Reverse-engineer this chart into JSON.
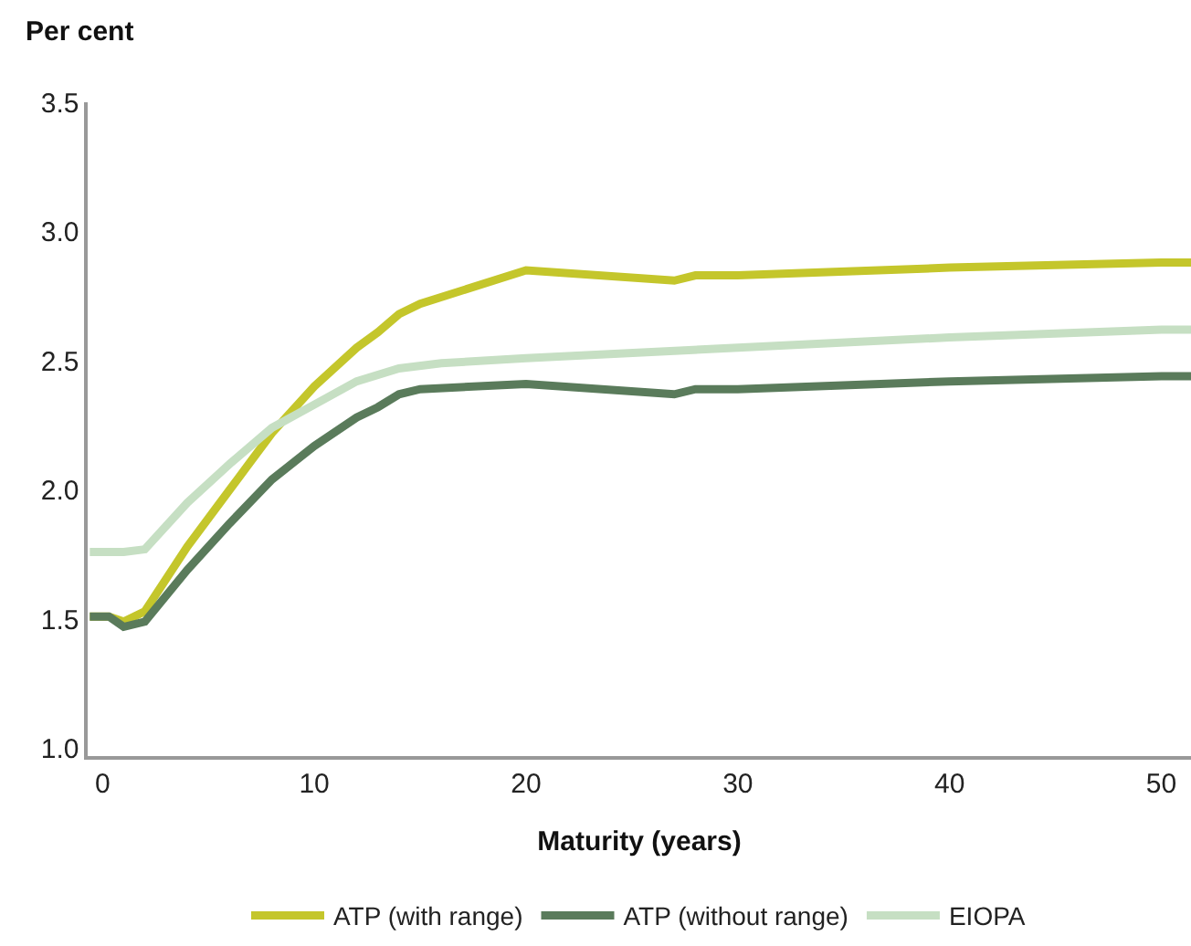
{
  "chart_data": {
    "type": "line",
    "ylabel": "Per cent",
    "xlabel": "Maturity (years)",
    "xlim": [
      -0.7,
      51.4
    ],
    "xticks": [
      0,
      10,
      20,
      30,
      40,
      50
    ],
    "ylim": [
      0.97,
      3.5
    ],
    "yticks": [
      {
        "value": 1.0,
        "label": "1.0"
      },
      1.5,
      {
        "value": 2.0,
        "label": "2.0"
      },
      2.5,
      {
        "value": 3.0,
        "label": "3.0"
      },
      3.5
    ],
    "legend": "bottom",
    "marker": "none",
    "line_style": "solid",
    "series": [
      {
        "name": "ATP (with range)",
        "color": "#c4c62b",
        "x": [
          -0.6,
          0.3,
          1,
          2,
          4,
          6,
          8,
          10,
          12,
          13,
          14,
          15,
          20,
          27,
          28,
          30,
          40,
          50,
          51.4
        ],
        "values": [
          1.51,
          1.51,
          1.49,
          1.53,
          1.78,
          2.0,
          2.22,
          2.4,
          2.55,
          2.61,
          2.68,
          2.72,
          2.85,
          2.81,
          2.83,
          2.83,
          2.86,
          2.88,
          2.88
        ]
      },
      {
        "name": "ATP (without range)",
        "color": "#5a7b5b",
        "x": [
          -0.6,
          0.3,
          1,
          2,
          4,
          6,
          8,
          10,
          12,
          13,
          14,
          15,
          20,
          27,
          28,
          30,
          40,
          50,
          51.4
        ],
        "values": [
          1.51,
          1.51,
          1.47,
          1.49,
          1.69,
          1.87,
          2.04,
          2.17,
          2.28,
          2.32,
          2.37,
          2.39,
          2.41,
          2.37,
          2.39,
          2.39,
          2.42,
          2.44,
          2.44
        ]
      },
      {
        "name": "EIOPA",
        "color": "#c6dfc3",
        "x": [
          -0.6,
          1,
          2,
          4,
          6,
          8,
          10,
          12,
          14,
          16,
          20,
          30,
          40,
          50,
          51.4
        ],
        "values": [
          1.76,
          1.76,
          1.77,
          1.95,
          2.1,
          2.24,
          2.33,
          2.42,
          2.47,
          2.49,
          2.51,
          2.55,
          2.59,
          2.62,
          2.62
        ]
      }
    ]
  }
}
